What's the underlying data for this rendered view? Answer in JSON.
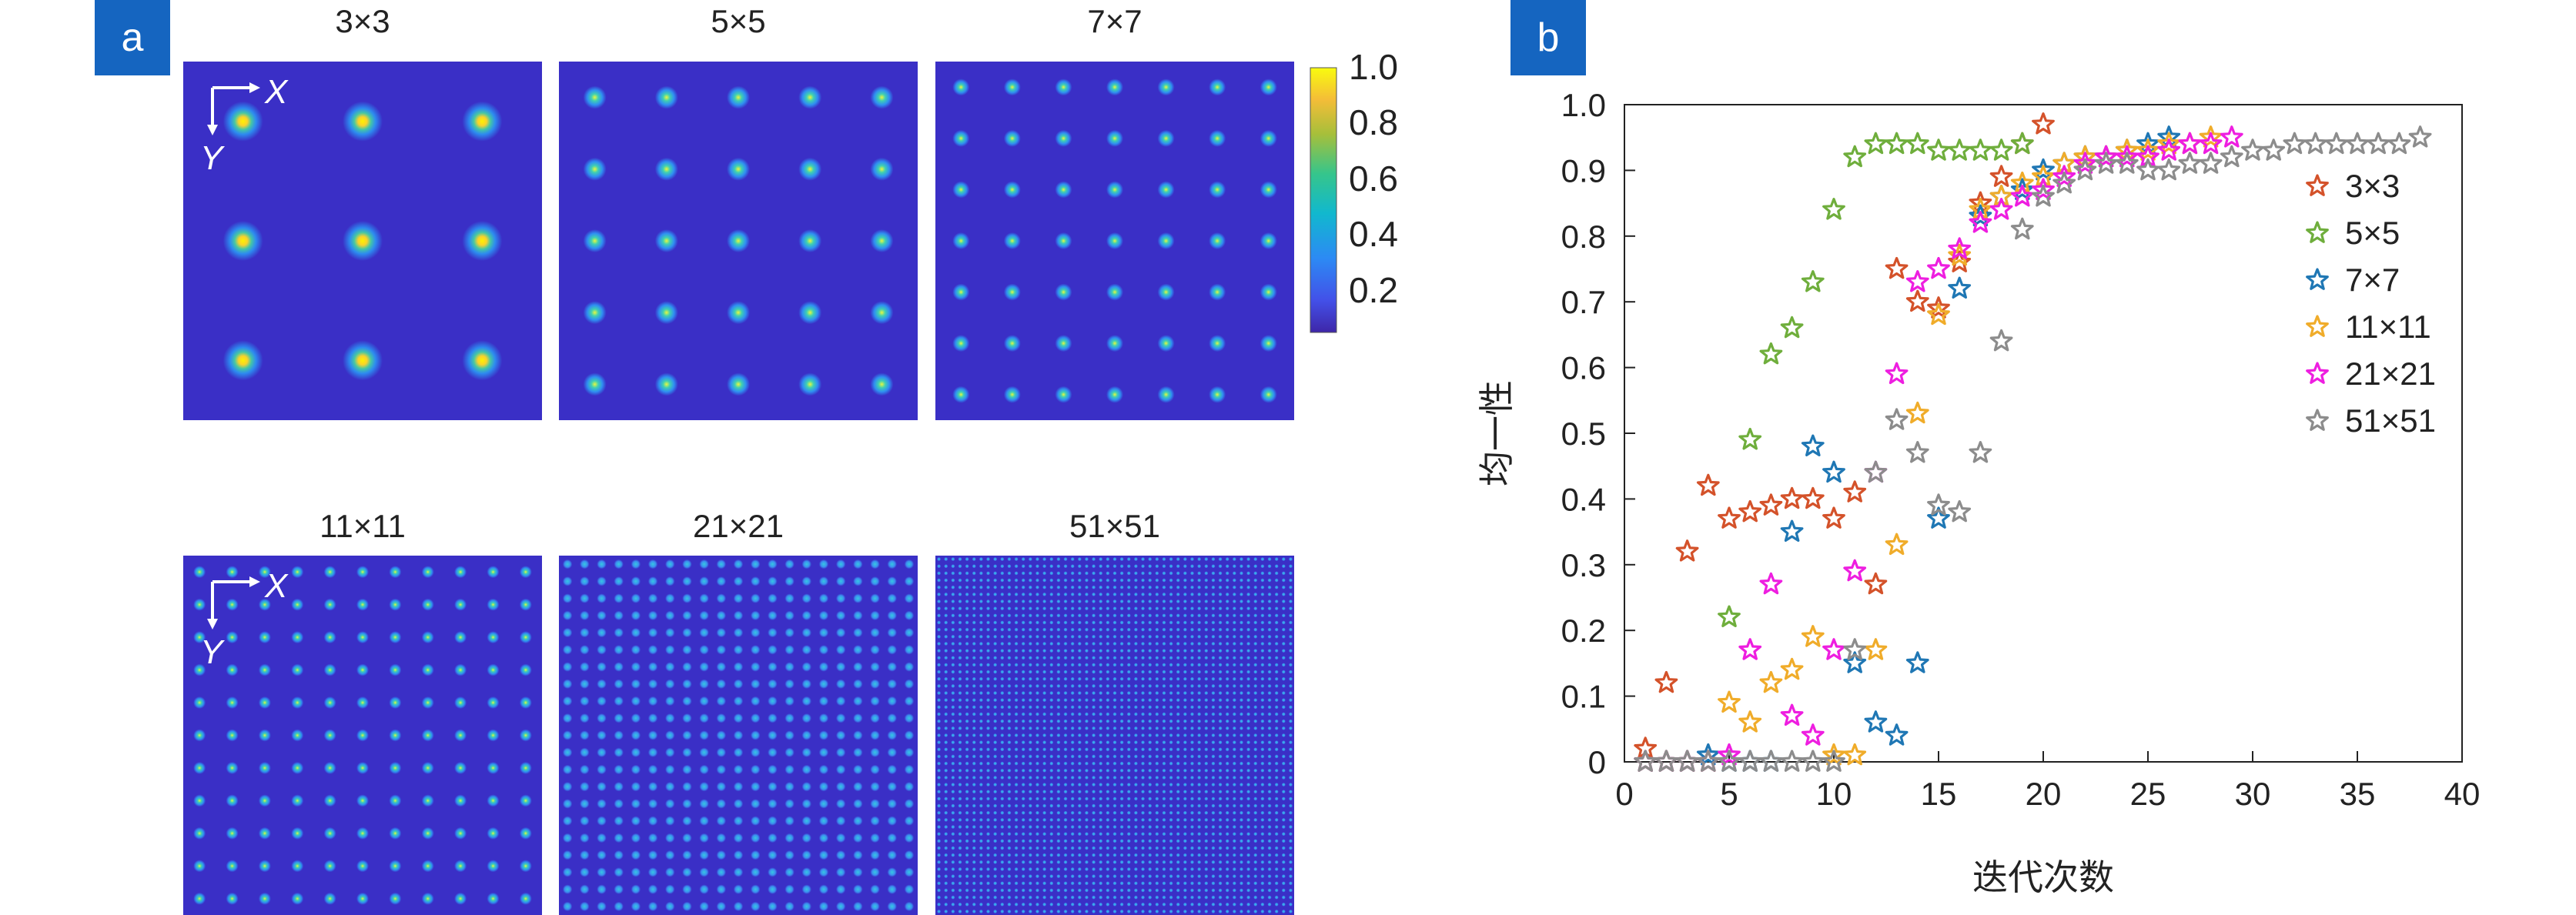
{
  "panel_a": {
    "tag": "a",
    "cells": [
      {
        "title": "3×3",
        "n": 3
      },
      {
        "title": "5×5",
        "n": 5
      },
      {
        "title": "7×7",
        "n": 7
      },
      {
        "title": "11×11",
        "n": 11
      },
      {
        "title": "21×21",
        "n": 21
      },
      {
        "title": "51×51",
        "n": 51
      }
    ],
    "axis_x": "X",
    "axis_y": "Y",
    "colorbar": {
      "ticks": [
        "1.0",
        "0.8",
        "0.6",
        "0.4",
        "0.2"
      ],
      "tick_values": [
        1.0,
        0.8,
        0.6,
        0.4,
        0.2
      ],
      "range": [
        0.05,
        1.0
      ]
    },
    "colors": {
      "background": "#3a2fc6",
      "spot_core": "#fff200"
    }
  },
  "panel_b": {
    "tag": "b",
    "chart_data": {
      "type": "scatter",
      "xlabel": "迭代次数",
      "ylabel": "均一性",
      "xlim": [
        0,
        40
      ],
      "ylim": [
        0,
        1.0
      ],
      "xticks": [
        "0",
        "5",
        "10",
        "15",
        "20",
        "25",
        "30",
        "35",
        "40"
      ],
      "yticks": [
        "0",
        "0.1",
        "0.2",
        "0.3",
        "0.4",
        "0.5",
        "0.6",
        "0.7",
        "0.8",
        "0.9",
        "1.0"
      ],
      "legend_position": "right",
      "grid": false,
      "marker": "star",
      "series": [
        {
          "name": "3×3",
          "color": "#d4522a",
          "x": [
            1,
            2,
            3,
            4,
            5,
            6,
            7,
            8,
            9,
            10,
            11,
            12,
            13,
            14,
            15,
            16,
            17,
            18,
            19,
            20
          ],
          "y": [
            0.02,
            0.12,
            0.32,
            0.42,
            0.37,
            0.38,
            0.39,
            0.4,
            0.4,
            0.37,
            0.41,
            0.27,
            0.75,
            0.7,
            0.69,
            0.76,
            0.85,
            0.89,
            0.94,
            0.97
          ]
        },
        {
          "name": "5×5",
          "color": "#6fae3c",
          "x": [
            1,
            2,
            3,
            4,
            5,
            6,
            7,
            8,
            9,
            10,
            11,
            12,
            13,
            14,
            15,
            16,
            17,
            18,
            19
          ],
          "y": [
            0,
            0,
            0,
            0,
            0.22,
            0.49,
            0.62,
            0.66,
            0.73,
            0.84,
            0.92,
            0.94,
            0.94,
            0.94,
            0.93,
            0.93,
            0.93,
            0.93,
            0.94
          ]
        },
        {
          "name": "7×7",
          "color": "#1f77b4",
          "x": [
            1,
            2,
            3,
            4,
            5,
            6,
            7,
            8,
            9,
            10,
            11,
            12,
            13,
            14,
            15,
            16,
            17,
            18,
            19,
            20,
            21,
            22,
            23,
            24,
            25,
            26
          ],
          "y": [
            0,
            0,
            0,
            0.01,
            0,
            0,
            0,
            0.35,
            0.48,
            0.44,
            0.15,
            0.06,
            0.04,
            0.15,
            0.37,
            0.72,
            0.83,
            0.86,
            0.87,
            0.9,
            0.91,
            0.92,
            0.92,
            0.93,
            0.94,
            0.95
          ]
        },
        {
          "name": "11×11",
          "color": "#f0ac2a",
          "x": [
            1,
            2,
            3,
            4,
            5,
            6,
            7,
            8,
            9,
            10,
            11,
            12,
            13,
            14,
            15,
            16,
            17,
            18,
            19,
            20,
            21,
            22,
            23,
            24,
            25,
            26,
            27,
            28
          ],
          "y": [
            0,
            0,
            0,
            0,
            0.09,
            0.06,
            0.12,
            0.14,
            0.19,
            0.01,
            0.01,
            0.17,
            0.33,
            0.53,
            0.68,
            0.77,
            0.84,
            0.86,
            0.88,
            0.89,
            0.91,
            0.92,
            0.92,
            0.93,
            0.93,
            0.94,
            0.94,
            0.95
          ]
        },
        {
          "name": "21×21",
          "color": "#ee1ee0",
          "x": [
            1,
            2,
            3,
            4,
            5,
            6,
            7,
            8,
            9,
            10,
            11,
            12,
            13,
            14,
            15,
            16,
            17,
            18,
            19,
            20,
            21,
            22,
            23,
            24,
            25,
            26,
            27,
            28,
            29
          ],
          "y": [
            0,
            0,
            0,
            0,
            0.01,
            0.17,
            0.27,
            0.07,
            0.04,
            0.17,
            0.29,
            0.44,
            0.59,
            0.73,
            0.75,
            0.78,
            0.82,
            0.84,
            0.86,
            0.87,
            0.89,
            0.91,
            0.92,
            0.92,
            0.92,
            0.93,
            0.94,
            0.94,
            0.95
          ]
        },
        {
          "name": "51×51",
          "color": "#8c8c8c",
          "x": [
            1,
            2,
            3,
            4,
            5,
            6,
            7,
            8,
            9,
            10,
            11,
            12,
            13,
            14,
            15,
            16,
            17,
            18,
            19,
            20,
            21,
            22,
            23,
            24,
            25,
            26,
            27,
            28,
            29,
            30,
            31,
            32,
            33,
            34,
            35,
            36,
            37,
            38
          ],
          "y": [
            0,
            0,
            0,
            0,
            0,
            0,
            0,
            0,
            0,
            0,
            0.17,
            0.44,
            0.52,
            0.47,
            0.39,
            0.38,
            0.47,
            0.64,
            0.81,
            0.86,
            0.88,
            0.9,
            0.91,
            0.91,
            0.9,
            0.9,
            0.91,
            0.91,
            0.92,
            0.93,
            0.93,
            0.94,
            0.94,
            0.94,
            0.94,
            0.94,
            0.94,
            0.95
          ]
        }
      ]
    }
  }
}
